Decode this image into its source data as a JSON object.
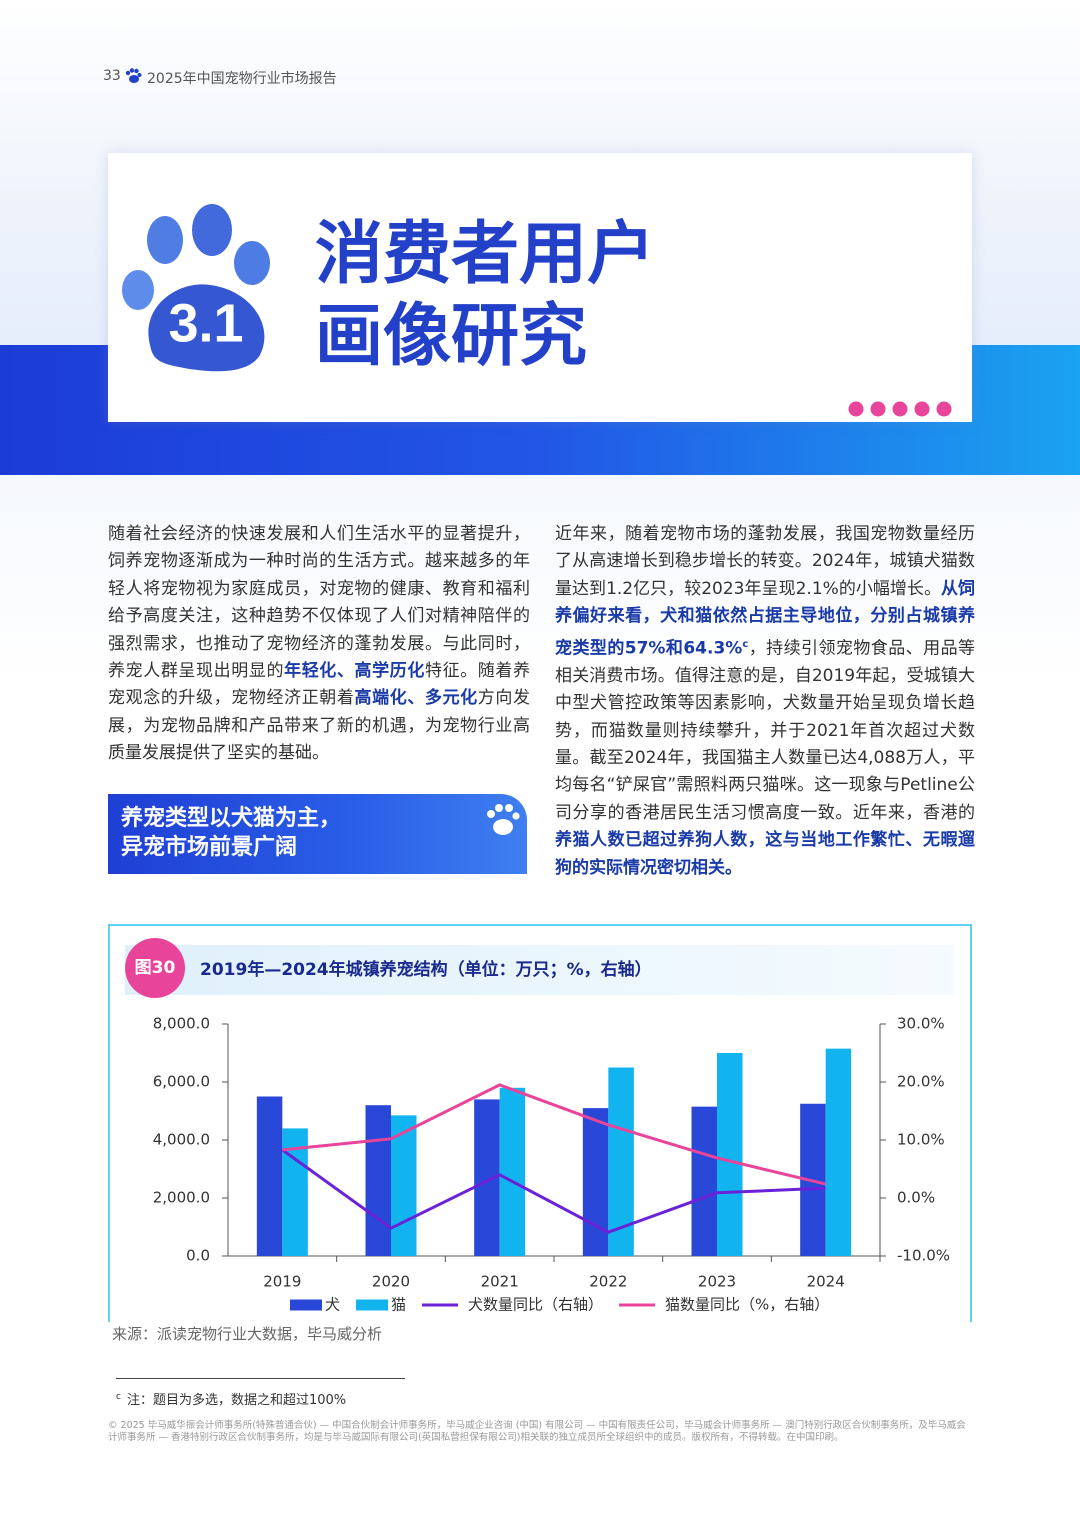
{
  "header": {
    "page_number": "33",
    "report_title": "2025年中国宠物行业市场报告"
  },
  "section": {
    "number": "3.1",
    "title_lines": [
      "消费者用户",
      "画像研究"
    ]
  },
  "left_paragraph": {
    "runs": [
      {
        "text": "随着社会经济的快速发展和人们生活水平的显著提升，饲养宠物逐渐成为一种时尚的生活方式。越来越多的年轻人将宠物视为家庭成员，对宠物的健康、教育和福利给予高度关注，这种趋势不仅体现了人们对精神陪伴的强烈需求，也推动了宠物经济的蓬勃发展。与此同时，养宠人群呈现出明显的",
        "style": "normal"
      },
      {
        "text": "年轻化、高学历化",
        "style": "bold"
      },
      {
        "text": "特征。随着养宠观念的升级，宠物经济正朝着",
        "style": "normal"
      },
      {
        "text": "高端化、多元化",
        "style": "bold"
      },
      {
        "text": "方向发展，为宠物品牌和产品带来了新的机遇，为宠物行业高质量发展提供了坚实的基础。",
        "style": "normal"
      }
    ]
  },
  "subheading": {
    "lines": [
      "养宠类型以犬猫为主，",
      "异宠市场前景广阔"
    ]
  },
  "right_paragraph": {
    "runs": [
      {
        "text": "近年来，随着宠物市场的蓬勃发展，我国宠物数量经历了从高速增长到稳步增长的转变。2024年，城镇犬猫数量达到1.2亿只，较2023年呈现2.1%的小幅增长。",
        "style": "normal"
      },
      {
        "text": "从饲养偏好来看，犬和猫依然占据主导地位，分别占城镇养宠类型的57%和64.3%",
        "style": "bold"
      },
      {
        "text": "c",
        "style": "sup"
      },
      {
        "text": "，持续引领宠物食品、用品等相关消费市场。值得注意的是，自2019年起，受城镇大中型犬管控政策等因素影响，犬数量开始呈现负增长趋势，而猫数量则持续攀升，并于2021年首次超过犬数量。截至2024年，我国猫主人数量已达4,088万人，平均每名“铲屎官”需照料两只猫咪。这一现象与Petline公司分享的香港居民生活习惯高度一致。近年来，香港的",
        "style": "normal"
      },
      {
        "text": "养猫人数已超过养狗人数，这与当地工作繁忙、无暇遛狗的实际情况密切相关。",
        "style": "bold"
      }
    ]
  },
  "chart_data": {
    "type": "bar",
    "figure_label": "图30",
    "title": "2019年—2024年城镇养宠结构（单位：万只；%，右轴）",
    "categories": [
      "2019",
      "2020",
      "2021",
      "2022",
      "2023",
      "2024"
    ],
    "series": [
      {
        "name": "犬",
        "type": "bar",
        "color": "#2a48d8",
        "values": [
          5500,
          5200,
          5400,
          5100,
          5150,
          5250
        ]
      },
      {
        "name": "猫",
        "type": "bar",
        "color": "#12b4f0",
        "values": [
          4400,
          4850,
          5800,
          6500,
          7000,
          7150
        ]
      },
      {
        "name": "犬数量同比（右轴）",
        "type": "line",
        "axis": "y2",
        "color": "#6a22d8",
        "values": [
          8.3,
          -5.2,
          4.0,
          -5.9,
          0.9,
          1.7
        ]
      },
      {
        "name": "猫数量同比（%，右轴）",
        "type": "line",
        "axis": "y2",
        "color": "#e8449a",
        "values": [
          8.3,
          10.2,
          19.5,
          12.6,
          6.9,
          2.4
        ]
      }
    ],
    "ylim": [
      0,
      8000
    ],
    "yticks": [
      {
        "value": 0,
        "label": "0.0"
      },
      {
        "value": 2000,
        "label": "2,000.0"
      },
      {
        "value": 4000,
        "label": "4,000.0"
      },
      {
        "value": 6000,
        "label": "6,000.0"
      },
      {
        "value": 8000,
        "label": "8,000.0"
      }
    ],
    "y2lim": [
      -10,
      30
    ],
    "y2ticks": [
      {
        "value": -10,
        "label": "-10.0%"
      },
      {
        "value": 0,
        "label": "0.0%"
      },
      {
        "value": 10,
        "label": "10.0%"
      },
      {
        "value": 20,
        "label": "20.0%"
      },
      {
        "value": 30,
        "label": "30.0%"
      }
    ],
    "legend": "bottom",
    "source": "来源：派读宠物行业大数据，毕马威分析"
  },
  "footnote": {
    "marker": "c",
    "text": "注：题目为多选，数据之和超过100%"
  },
  "copyright": "© 2025 毕马威华振会计师事务所(特殊普通合伙) — 中国合伙制会计师事务所，毕马威企业咨询 (中国) 有限公司 — 中国有限责任公司，毕马威会计师事务所 — 澳门特别行政区合伙制事务所，及毕马威会计师事务所 — 香港特别行政区合伙制事务所，均是与毕马威国际有限公司(英国私营担保有限公司)相关联的独立成员所全球组织中的成员。版权所有，不得转载。在中国印刷。"
}
